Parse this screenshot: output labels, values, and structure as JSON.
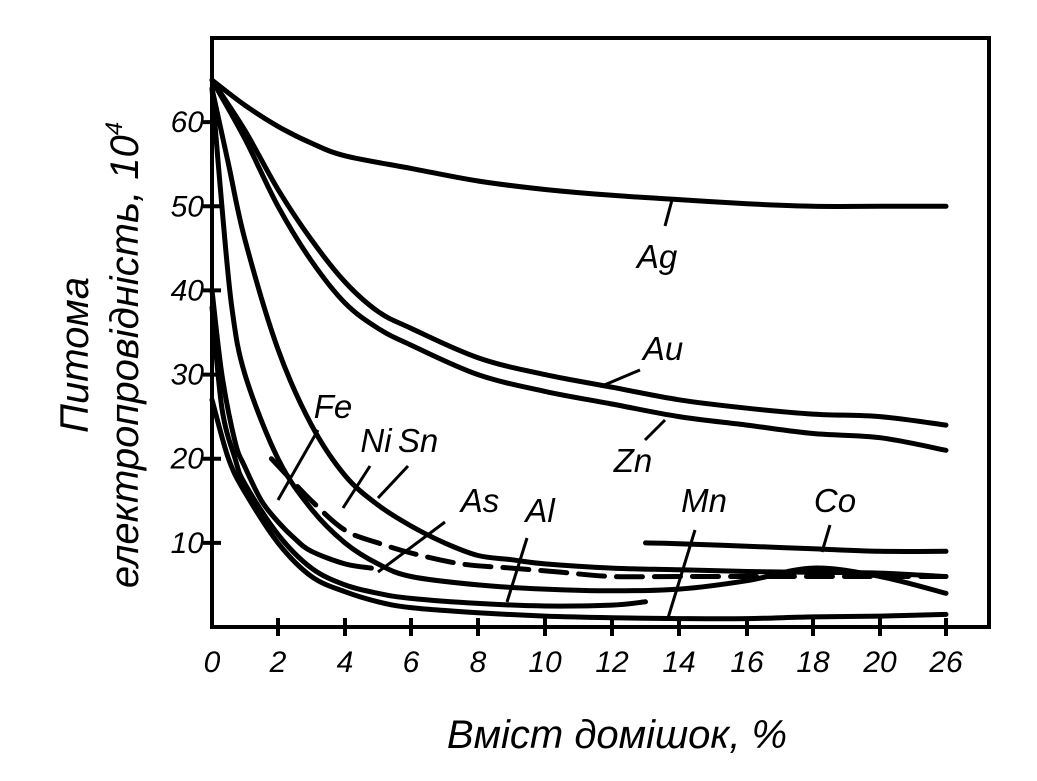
{
  "chart_data": {
    "type": "line",
    "xlabel": "Вміст домішок, %",
    "ylabel_line1": "Питома",
    "ylabel_line2": "електропровідність, 10",
    "ylabel_exponent": "4",
    "x_tick_labels": [
      "0",
      "2",
      "4",
      "6",
      "8",
      "10",
      "12",
      "14",
      "16",
      "18",
      "20",
      "26"
    ],
    "y_ticks": [
      10,
      20,
      30,
      40,
      50,
      60
    ],
    "ylim": [
      0,
      70
    ],
    "grid": false,
    "series": [
      {
        "name": "Ag",
        "style": "solid",
        "points": [
          [
            0,
            65
          ],
          [
            1,
            62
          ],
          [
            2,
            59.5
          ],
          [
            3,
            57.5
          ],
          [
            4,
            56
          ],
          [
            6,
            54.5
          ],
          [
            8,
            53
          ],
          [
            10,
            52
          ],
          [
            12,
            51.3
          ],
          [
            14,
            50.8
          ],
          [
            16,
            50.3
          ],
          [
            18,
            50
          ],
          [
            20,
            50
          ],
          [
            26,
            50
          ]
        ]
      },
      {
        "name": "Au",
        "style": "solid",
        "points": [
          [
            0,
            65
          ],
          [
            1,
            59
          ],
          [
            2,
            52
          ],
          [
            3,
            46
          ],
          [
            4,
            41
          ],
          [
            5,
            37.5
          ],
          [
            6,
            35.5
          ],
          [
            8,
            32
          ],
          [
            10,
            30
          ],
          [
            12,
            28.5
          ],
          [
            14,
            27
          ],
          [
            16,
            26
          ],
          [
            18,
            25.3
          ],
          [
            20,
            25
          ],
          [
            26,
            24
          ]
        ]
      },
      {
        "name": "Zn",
        "style": "solid",
        "points": [
          [
            0,
            65
          ],
          [
            1,
            58
          ],
          [
            2,
            50
          ],
          [
            3,
            43.5
          ],
          [
            4,
            38.5
          ],
          [
            5,
            35.5
          ],
          [
            6,
            33.5
          ],
          [
            8,
            30
          ],
          [
            10,
            28
          ],
          [
            12,
            26.5
          ],
          [
            14,
            25
          ],
          [
            16,
            24
          ],
          [
            18,
            23
          ],
          [
            20,
            22.5
          ],
          [
            26,
            21
          ]
        ]
      },
      {
        "name": "Sn",
        "style": "solid",
        "points": [
          [
            0,
            64
          ],
          [
            0.5,
            55
          ],
          [
            1,
            46
          ],
          [
            2,
            33
          ],
          [
            3,
            24
          ],
          [
            4,
            18
          ],
          [
            5,
            14.5
          ],
          [
            6,
            12
          ],
          [
            7,
            10
          ],
          [
            8,
            8.5
          ],
          [
            9,
            8
          ],
          [
            10,
            7.5
          ],
          [
            12,
            7
          ],
          [
            14,
            6.8
          ],
          [
            16,
            6.6
          ],
          [
            18,
            6.5
          ],
          [
            20,
            6.4
          ],
          [
            26,
            6
          ]
        ]
      },
      {
        "name": "Ni",
        "style": "dashed",
        "points": [
          [
            1.8,
            20
          ],
          [
            3,
            15
          ],
          [
            4,
            11.5
          ],
          [
            5,
            10
          ],
          [
            6,
            8.8
          ],
          [
            7.5,
            7.5
          ],
          [
            9,
            7
          ],
          [
            10.5,
            6.5
          ],
          [
            12,
            6
          ],
          [
            14,
            6
          ],
          [
            16,
            6
          ],
          [
            18,
            6
          ],
          [
            20,
            6
          ],
          [
            26,
            6
          ]
        ]
      },
      {
        "name": "As",
        "style": "solid",
        "points": [
          [
            0,
            64
          ],
          [
            0.3,
            50
          ],
          [
            0.6,
            38
          ],
          [
            1,
            30
          ],
          [
            2,
            20
          ],
          [
            3,
            14
          ],
          [
            4,
            10
          ],
          [
            5,
            7.5
          ],
          [
            6,
            6
          ],
          [
            8,
            5
          ],
          [
            10,
            4.5
          ],
          [
            12,
            4.3
          ],
          [
            14,
            4.5
          ],
          [
            16,
            5.5
          ],
          [
            18,
            7
          ],
          [
            20,
            6
          ],
          [
            26,
            4
          ]
        ]
      },
      {
        "name": "Fe",
        "style": "solid",
        "points": [
          [
            0,
            40
          ],
          [
            0.3,
            30
          ],
          [
            0.7,
            22
          ],
          [
            1,
            19
          ],
          [
            1.5,
            15
          ],
          [
            2,
            12.5
          ],
          [
            2.5,
            10.5
          ],
          [
            3,
            9
          ],
          [
            4,
            7.5
          ],
          [
            4.8,
            7
          ]
        ]
      },
      {
        "name": "Al",
        "style": "solid",
        "points": [
          [
            0,
            38
          ],
          [
            0.3,
            26
          ],
          [
            0.7,
            20
          ],
          [
            1,
            17
          ],
          [
            2,
            11
          ],
          [
            3,
            7
          ],
          [
            4,
            5
          ],
          [
            5,
            4
          ],
          [
            6,
            3.4
          ],
          [
            8,
            2.8
          ],
          [
            10,
            2.5
          ],
          [
            12,
            2.6
          ],
          [
            13,
            3
          ]
        ]
      },
      {
        "name": "Mn",
        "style": "solid",
        "points": [
          [
            0,
            27
          ],
          [
            0.5,
            20
          ],
          [
            1,
            16
          ],
          [
            2,
            10
          ],
          [
            3,
            6
          ],
          [
            4,
            4.2
          ],
          [
            5,
            3
          ],
          [
            6,
            2.3
          ],
          [
            8,
            1.7
          ],
          [
            10,
            1.3
          ],
          [
            12,
            1.1
          ],
          [
            14,
            1
          ],
          [
            16,
            1
          ],
          [
            18,
            1.2
          ],
          [
            20,
            1.3
          ],
          [
            26,
            1.5
          ]
        ]
      },
      {
        "name": "Co",
        "style": "solid",
        "points": [
          [
            13,
            10
          ],
          [
            14,
            9.9
          ],
          [
            16,
            9.6
          ],
          [
            18,
            9.3
          ],
          [
            20,
            9
          ],
          [
            26,
            9
          ]
        ]
      }
    ],
    "labels": [
      {
        "text": "Ag"
      },
      {
        "text": "Au"
      },
      {
        "text": "Zn"
      },
      {
        "text": "Fe"
      },
      {
        "text": "Ni"
      },
      {
        "text": "Sn"
      },
      {
        "text": "As"
      },
      {
        "text": "Al"
      },
      {
        "text": "Mn"
      },
      {
        "text": "Co"
      }
    ]
  }
}
